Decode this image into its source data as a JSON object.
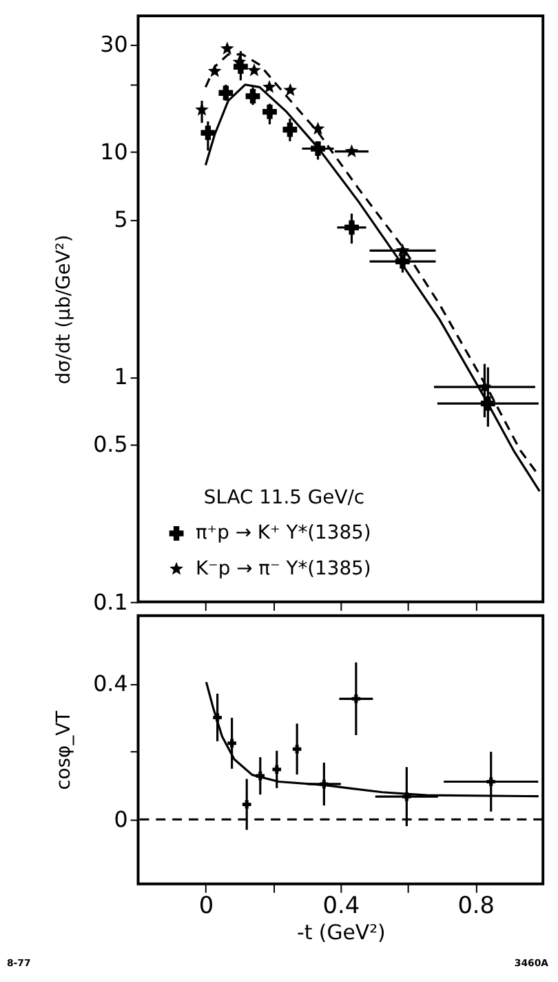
{
  "chart_data": [
    {
      "type": "scatter",
      "ylabel": "dσ/dt   (μb/GeV²)",
      "legend_title": "SLAC 11.5 GeV/c",
      "legend": "bottom left",
      "log": "y",
      "grid": false,
      "tick_labels": "y",
      "xlim": [
        -0.2,
        1.0
      ],
      "xticks": [
        {
          "value": 0,
          "label": null
        },
        {
          "value": 0.2,
          "label": null
        },
        {
          "value": 0.4,
          "label": null
        },
        {
          "value": 0.6,
          "label": null
        },
        {
          "value": 0.8,
          "label": null
        }
      ],
      "ylim": [
        0.1,
        40
      ],
      "yticks": [
        0.1,
        0.5,
        1,
        5,
        10,
        {
          "value": 20,
          "label": null
        },
        30
      ],
      "series": [
        {
          "name": "π⁺p → K⁺ Y*(1385)",
          "color": "#000000",
          "marker": "cross",
          "x": [
            0.007,
            0.06,
            0.104,
            0.14,
            0.19,
            0.25,
            0.333,
            0.433,
            0.584,
            0.837
          ],
          "values": [
            12.1,
            18.2,
            23.8,
            17.6,
            15.0,
            12.5,
            10.3,
            4.6,
            3.25,
            0.76
          ],
          "errors": [
            [
              10.1,
              13.6
            ],
            [
              16.8,
              19.8
            ],
            [
              20.7,
              27.9
            ],
            [
              16.1,
              19.3
            ],
            [
              13.2,
              16.3
            ],
            [
              11.1,
              14.0
            ],
            [
              9.2,
              11.1
            ],
            [
              3.9,
              5.3
            ],
            [
              2.9,
              3.5
            ],
            [
              0.6,
              1.1
            ]
          ],
          "xerrors": [
            null,
            null,
            null,
            null,
            null,
            null,
            0.047,
            0.043,
            0.098,
            0.15
          ]
        },
        {
          "name": "K⁻p → π⁻ Y*(1385)",
          "color": "#000000",
          "marker": "star",
          "x": [
            -0.011,
            0.027,
            0.064,
            0.1,
            0.144,
            0.189,
            0.251,
            0.333,
            0.433,
            0.584,
            0.827
          ],
          "values": [
            15.3,
            22.7,
            28.6,
            24.9,
            22.9,
            19.3,
            18.7,
            12.6,
            10.0,
            3.63,
            0.9
          ],
          "errors": [
            [
              13.4,
              16.8
            ],
            null,
            null,
            null,
            null,
            null,
            null,
            null,
            null,
            null,
            [
              0.66,
              1.14
            ]
          ],
          "xerrors": [
            null,
            null,
            null,
            null,
            null,
            null,
            null,
            null,
            0.05,
            0.098,
            0.15
          ]
        },
        {
          "type": "line",
          "color": "#000000",
          "line_style": "solid",
          "x": [
            0,
            0.027,
            0.067,
            0.117,
            0.16,
            0.24,
            0.333,
            0.453,
            0.584,
            0.693,
            0.837,
            0.913,
            0.99
          ],
          "values": [
            8.7,
            11.9,
            16.8,
            19.8,
            19.3,
            15.0,
            10.4,
            6.0,
            3.13,
            1.8,
            0.76,
            0.47,
            0.31
          ]
        },
        {
          "type": "line",
          "color": "#000000",
          "line_style": "dashed",
          "x": [
            0,
            0.027,
            0.067,
            0.109,
            0.16,
            0.24,
            0.333,
            0.453,
            0.584,
            0.693,
            0.837,
            0.933,
            0.99
          ],
          "values": [
            19.3,
            23.8,
            27,
            27,
            24.3,
            17.6,
            12.2,
            6.85,
            3.77,
            2.1,
            0.88,
            0.47,
            0.36
          ]
        }
      ]
    },
    {
      "type": "scatter",
      "xlabel": "-t   (GeV²)",
      "ylabel": "cosφ_VT",
      "grid": false,
      "legend": false,
      "xlim": [
        -0.2,
        1.0
      ],
      "xticks": [
        0,
        {
          "value": 0.2,
          "label": null
        },
        0.4,
        {
          "value": 0.6,
          "label": null
        },
        0.8
      ],
      "ylim": [
        -0.19,
        0.6
      ],
      "yticks": [
        0,
        {
          "value": 0.2,
          "label": null
        },
        0.4
      ],
      "ref_lines": [
        {
          "axis": "y",
          "value": 0,
          "line_style": "dashed",
          "color": "#000000"
        }
      ],
      "annotations": [
        "8-77",
        "3460A"
      ],
      "series": [
        {
          "color": "#000000",
          "marker": "cross",
          "x": [
            0.035,
            0.078,
            0.122,
            0.162,
            0.211,
            0.271,
            0.351,
            0.446,
            0.596,
            0.846
          ],
          "values": [
            0.3,
            0.224,
            0.044,
            0.128,
            0.147,
            0.207,
            0.104,
            0.355,
            0.067,
            0.111
          ],
          "errors": [
            0.07,
            0.075,
            0.075,
            0.055,
            0.055,
            0.075,
            0.063,
            0.107,
            0.087,
            0.088
          ],
          "xerrors": [
            null,
            null,
            null,
            null,
            null,
            null,
            0.05,
            0.05,
            0.093,
            0.14
          ]
        },
        {
          "type": "line",
          "color": "#000000",
          "line_style": "solid",
          "x": [
            0.002,
            0.022,
            0.049,
            0.085,
            0.138,
            0.217,
            0.351,
            0.523,
            0.655,
            0.987
          ],
          "values": [
            0.404,
            0.33,
            0.244,
            0.177,
            0.131,
            0.111,
            0.101,
            0.08,
            0.071,
            0.068
          ]
        }
      ]
    }
  ]
}
